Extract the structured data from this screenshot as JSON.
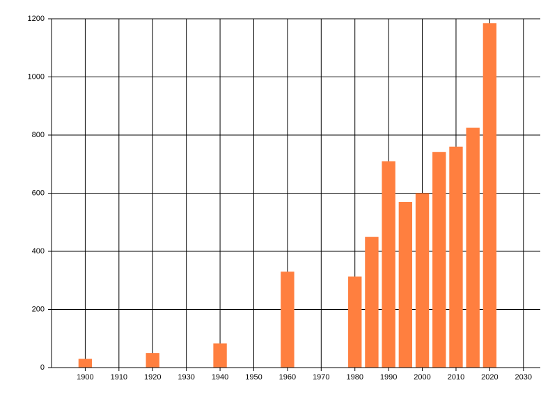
{
  "chart_data": {
    "type": "bar",
    "x": [
      1900,
      1920,
      1940,
      1960,
      1980,
      1985,
      1990,
      1995,
      2000,
      2005,
      2010,
      2015,
      2020
    ],
    "values": [
      30,
      50,
      83,
      330,
      313,
      450,
      710,
      570,
      600,
      742,
      760,
      825,
      1185
    ],
    "color": "#ff7f3f",
    "xlim": [
      1890,
      2035
    ],
    "xticks": [
      1900,
      1910,
      1920,
      1930,
      1940,
      1950,
      1960,
      1970,
      1980,
      1990,
      2000,
      2010,
      2020,
      2030
    ],
    "ylim": [
      0,
      1200
    ],
    "yticks": [
      0,
      200,
      400,
      600,
      800,
      1000,
      1200
    ],
    "grid": true
  }
}
